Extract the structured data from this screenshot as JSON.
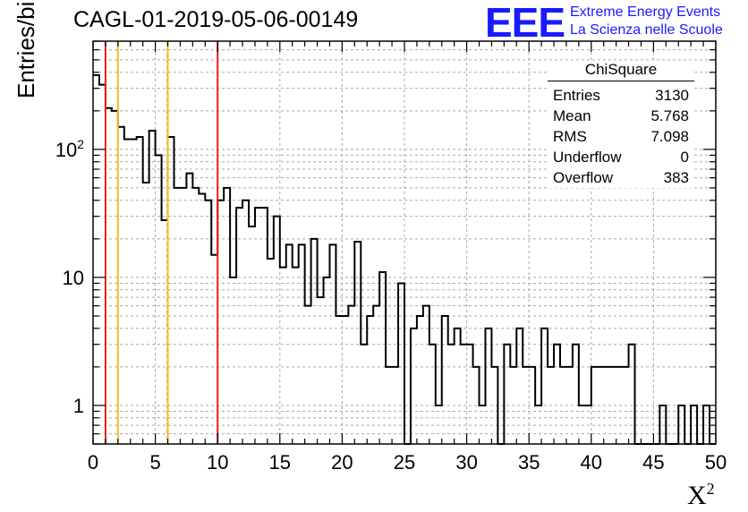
{
  "title": "CAGL-01-2019-05-06-00149",
  "logo": {
    "mark": "EEE",
    "line1": "Extreme Energy Events",
    "line2": "La Scienza nelle Scuole",
    "color": "#1a1aff"
  },
  "axes": {
    "ylabel": "Entries/bin",
    "xlabel_base": "X",
    "xlabel_sup": "2"
  },
  "stats": {
    "title": "ChiSquare",
    "rows": [
      {
        "label": "Entries",
        "value": "3130"
      },
      {
        "label": "Mean",
        "value": "5.768"
      },
      {
        "label": "RMS",
        "value": "7.098"
      },
      {
        "label": "Underflow",
        "value": "0"
      },
      {
        "label": "Overflow",
        "value": "383"
      }
    ]
  },
  "chart_data": {
    "type": "histogram",
    "x_range": [
      0,
      50
    ],
    "y_scale": "log",
    "y_range": [
      0.5,
      700
    ],
    "bin_width": 0.5,
    "x_ticks": [
      0,
      5,
      10,
      15,
      20,
      25,
      30,
      35,
      40,
      45,
      50
    ],
    "y_tick_labels": [
      {
        "value": 1,
        "label": "1"
      },
      {
        "value": 10,
        "label": "10"
      },
      {
        "value": 100,
        "label": "10",
        "sup": "2"
      }
    ],
    "grid": true,
    "bin_values": [
      380,
      320,
      210,
      200,
      150,
      120,
      120,
      125,
      55,
      140,
      90,
      28,
      125,
      50,
      50,
      65,
      50,
      45,
      40,
      15,
      40,
      50,
      10,
      35,
      40,
      25,
      35,
      35,
      14,
      30,
      12,
      18,
      12,
      18,
      6,
      20,
      7,
      10,
      18,
      5,
      5,
      6,
      19,
      3,
      5,
      6,
      11,
      2,
      2,
      9,
      0,
      4,
      5,
      6,
      3,
      1,
      5,
      3,
      4,
      3,
      3,
      2,
      1,
      4,
      2,
      0,
      3,
      2,
      4,
      2,
      2,
      1,
      4,
      2,
      3,
      2,
      2,
      3,
      1,
      1,
      2,
      2,
      2,
      2,
      2,
      2,
      3,
      0,
      0,
      0,
      0,
      1,
      0,
      0,
      1,
      0,
      1,
      0,
      1,
      0
    ],
    "vertical_lines": [
      {
        "x": 1,
        "color": "#e8211d",
        "style": "solid"
      },
      {
        "x": 2,
        "color": "#f0c020",
        "style": "solid"
      },
      {
        "x": 5.991,
        "color": "#000000",
        "style": "dashed"
      },
      {
        "x": 6,
        "color": "#f0c020",
        "style": "solid"
      },
      {
        "x": 10,
        "color": "#e8211d",
        "style": "solid"
      }
    ]
  }
}
